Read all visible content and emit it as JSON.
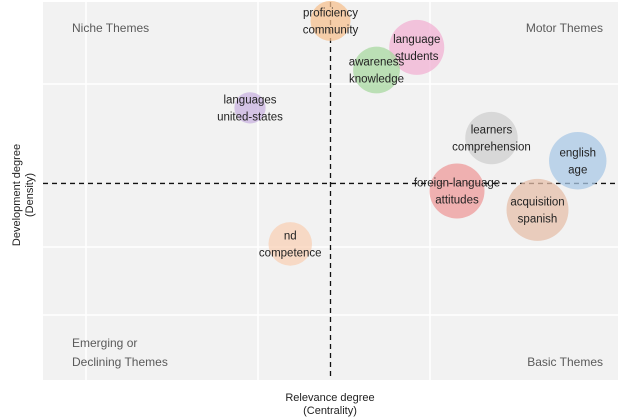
{
  "chart_data": {
    "type": "scatter",
    "title": "",
    "xlabel": "Relevance degree",
    "xlabel_sub": "(Centrality)",
    "ylabel": "Development degree",
    "ylabel_sub": "(Density)",
    "xlim": [
      0,
      100
    ],
    "ylim": [
      0,
      100
    ],
    "x_divider": 50,
    "y_divider": 52,
    "grid": true,
    "quadrants": {
      "niche": [
        "Niche Themes"
      ],
      "motor": [
        "Motor Themes"
      ],
      "emerging": [
        "Emerging or",
        "Declining Themes"
      ],
      "basic": [
        "Basic Themes"
      ]
    },
    "clusters": [
      {
        "labels": [
          "proficiency",
          "community"
        ],
        "x": 50.0,
        "y": 95.0,
        "size": 4,
        "color": "#f6c08f"
      },
      {
        "labels": [
          "language",
          "students"
        ],
        "x": 65.0,
        "y": 88.0,
        "size": 9,
        "color": "#f1b1d3"
      },
      {
        "labels": [
          "awareness",
          "knowledge"
        ],
        "x": 58.0,
        "y": 82.0,
        "size": 6,
        "color": "#a8d8a0"
      },
      {
        "labels": [
          "languages",
          "united-states"
        ],
        "x": 36.0,
        "y": 72.0,
        "size": 2,
        "color": "#c9b3e0"
      },
      {
        "labels": [
          "learners",
          "comprehension"
        ],
        "x": 78.0,
        "y": 64.0,
        "size": 8,
        "color": "#cfcfcf"
      },
      {
        "labels": [
          "english",
          "age"
        ],
        "x": 93.0,
        "y": 58.0,
        "size": 10,
        "color": "#a9c8e6"
      },
      {
        "labels": [
          "foreign-language",
          "attitudes"
        ],
        "x": 72.0,
        "y": 50.0,
        "size": 9,
        "color": "#ee9a9a"
      },
      {
        "labels": [
          "acquisition",
          "spanish"
        ],
        "x": 86.0,
        "y": 45.0,
        "size": 12,
        "color": "#e6bfa9"
      },
      {
        "labels": [
          "nd",
          "competence"
        ],
        "x": 43.0,
        "y": 36.0,
        "size": 5,
        "color": "#f8d0b6"
      }
    ]
  }
}
